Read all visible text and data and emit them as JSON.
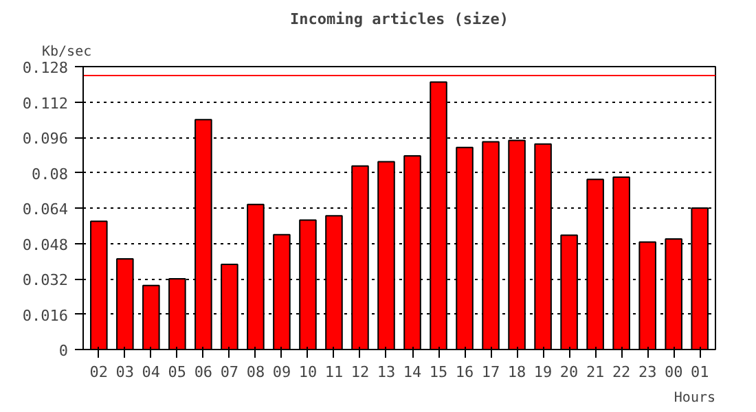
{
  "chart_data": {
    "type": "bar",
    "title": "Incoming articles (size)",
    "xlabel": "Hours",
    "ylabel": "Kb/sec",
    "categories": [
      "02",
      "03",
      "04",
      "05",
      "06",
      "07",
      "08",
      "09",
      "10",
      "11",
      "12",
      "13",
      "14",
      "15",
      "16",
      "17",
      "18",
      "19",
      "20",
      "21",
      "22",
      "23",
      "00",
      "01"
    ],
    "values": [
      0.058,
      0.041,
      0.029,
      0.032,
      0.104,
      0.0385,
      0.0656,
      0.052,
      0.0586,
      0.0605,
      0.083,
      0.085,
      0.0876,
      0.121,
      0.0914,
      0.094,
      0.0946,
      0.093,
      0.0517,
      0.077,
      0.078,
      0.0486,
      0.05,
      0.064
    ],
    "color": "#ff0000",
    "ylim": [
      0,
      0.128
    ],
    "yticks": [
      0,
      0.016,
      0.032,
      0.048,
      0.064,
      0.08,
      0.096,
      0.112,
      0.128
    ],
    "grid": "y",
    "ref_lines": [
      {
        "axis": "y",
        "value": 0.124,
        "color": "#ff0000"
      }
    ]
  }
}
